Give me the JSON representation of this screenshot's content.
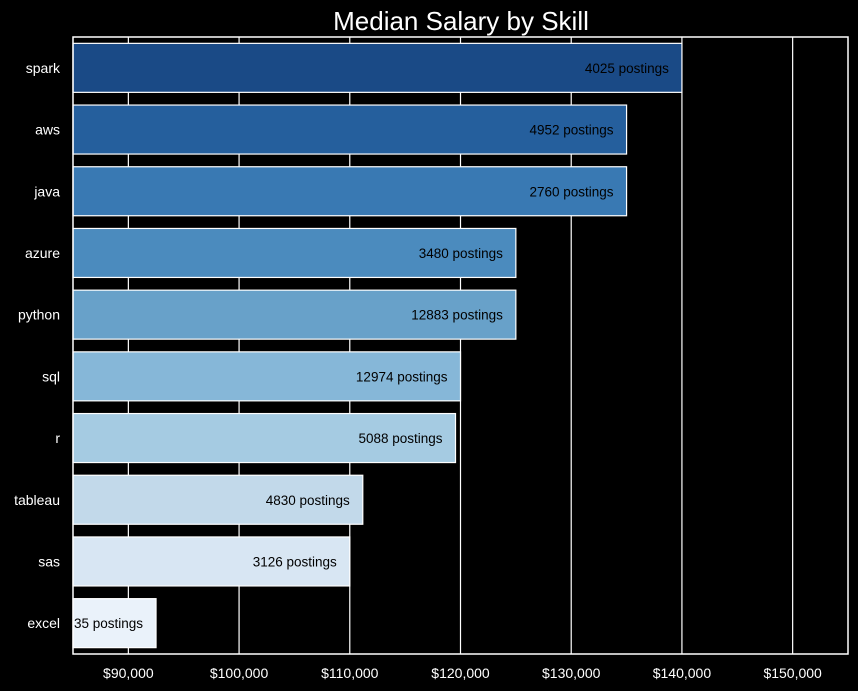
{
  "chart_data": {
    "type": "bar",
    "orientation": "horizontal",
    "title": "Median Salary by Skill",
    "xlabel": "",
    "ylabel": "",
    "xlim": [
      85000,
      155000
    ],
    "x_ticks": [
      90000,
      100000,
      110000,
      120000,
      130000,
      140000,
      150000
    ],
    "x_tick_labels": [
      "$90,000",
      "$100,000",
      "$110,000",
      "$120,000",
      "$130,000",
      "$140,000",
      "$150,000"
    ],
    "grid": true,
    "categories": [
      "spark",
      "aws",
      "java",
      "azure",
      "python",
      "sql",
      "r",
      "tableau",
      "sas",
      "excel"
    ],
    "values": [
      140000,
      135000,
      135000,
      125000,
      125000,
      120000,
      119550,
      111175,
      110000,
      92500
    ],
    "bar_labels": [
      "4025 postings",
      "4952 postings",
      "2760 postings",
      "3480 postings",
      "12883 postings",
      "12974 postings",
      "5088 postings",
      "4830 postings",
      "3126 postings",
      "35 postings"
    ],
    "colors": [
      "#1a4a86",
      "#255f9d",
      "#3979b3",
      "#4b8bbe",
      "#68a1c9",
      "#86b7d8",
      "#a5cbe2",
      "#c2d9ea",
      "#d8e6f3",
      "#eaf2fa"
    ]
  },
  "theme": {
    "background": "#000000",
    "text": "#ffffff",
    "grid": "#ffffff",
    "bar_edge": "#ffffff",
    "label_text": "#000000"
  }
}
